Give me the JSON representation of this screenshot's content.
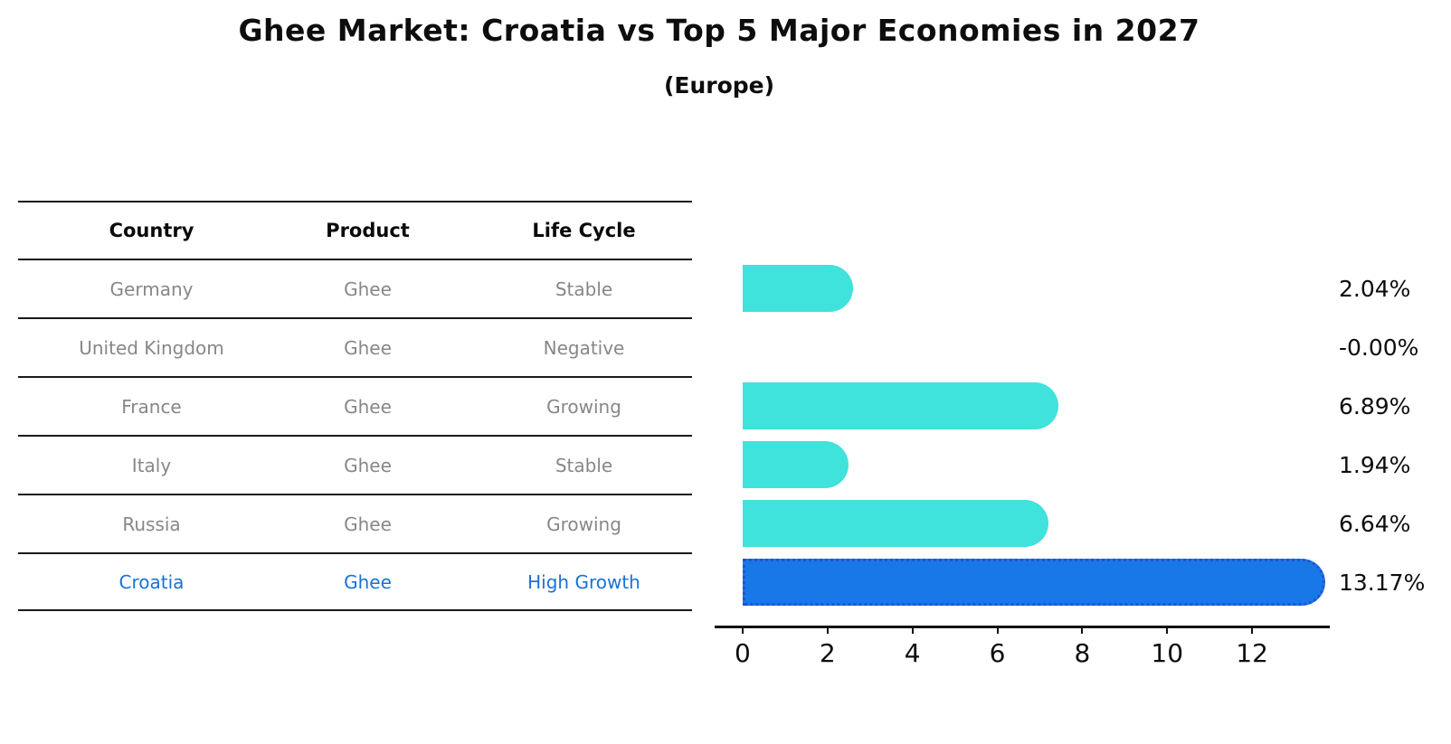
{
  "title": "Ghee Market: Croatia vs Top 5 Major Economies in 2027",
  "subtitle": "(Europe)",
  "table": {
    "headers": [
      "Country",
      "Product",
      "Life Cycle"
    ],
    "rows": [
      {
        "country": "Germany",
        "product": "Ghee",
        "life_cycle": "Stable",
        "highlight": false
      },
      {
        "country": "United Kingdom",
        "product": "Ghee",
        "life_cycle": "Negative",
        "highlight": false
      },
      {
        "country": "France",
        "product": "Ghee",
        "life_cycle": "Growing",
        "highlight": false
      },
      {
        "country": "Italy",
        "product": "Ghee",
        "life_cycle": "Stable",
        "highlight": false
      },
      {
        "country": "Russia",
        "product": "Ghee",
        "life_cycle": "Growing",
        "highlight": false
      },
      {
        "country": "Croatia",
        "product": "Ghee",
        "life_cycle": "High Growth",
        "highlight": true
      }
    ]
  },
  "chart_data": {
    "type": "bar",
    "orientation": "horizontal",
    "title": "Ghee Market: Croatia vs Top 5 Major Economies in 2027",
    "subtitle": "(Europe)",
    "categories": [
      "Germany",
      "United Kingdom",
      "France",
      "Italy",
      "Russia",
      "Croatia"
    ],
    "values": [
      2.04,
      -0.0,
      6.89,
      1.94,
      6.64,
      13.17
    ],
    "value_labels": [
      "2.04%",
      "-0.00%",
      "6.89%",
      "1.94%",
      "6.64%",
      "13.17%"
    ],
    "xlabel": "",
    "ylabel": "",
    "xticks": [
      0,
      2,
      4,
      6,
      8,
      10,
      12
    ],
    "xlim": [
      -0.66,
      13.83
    ],
    "grid": false,
    "legend": false,
    "bar_color": "#40E2DC",
    "highlight_index": 5,
    "highlight_color": "#1878E8",
    "highlight_border_color": "#2353CC"
  },
  "colors": {
    "highlight_text": "#1B72D2",
    "row_text": "#878787",
    "header_text": "#0A0A0A",
    "axis_color": "#111111"
  }
}
